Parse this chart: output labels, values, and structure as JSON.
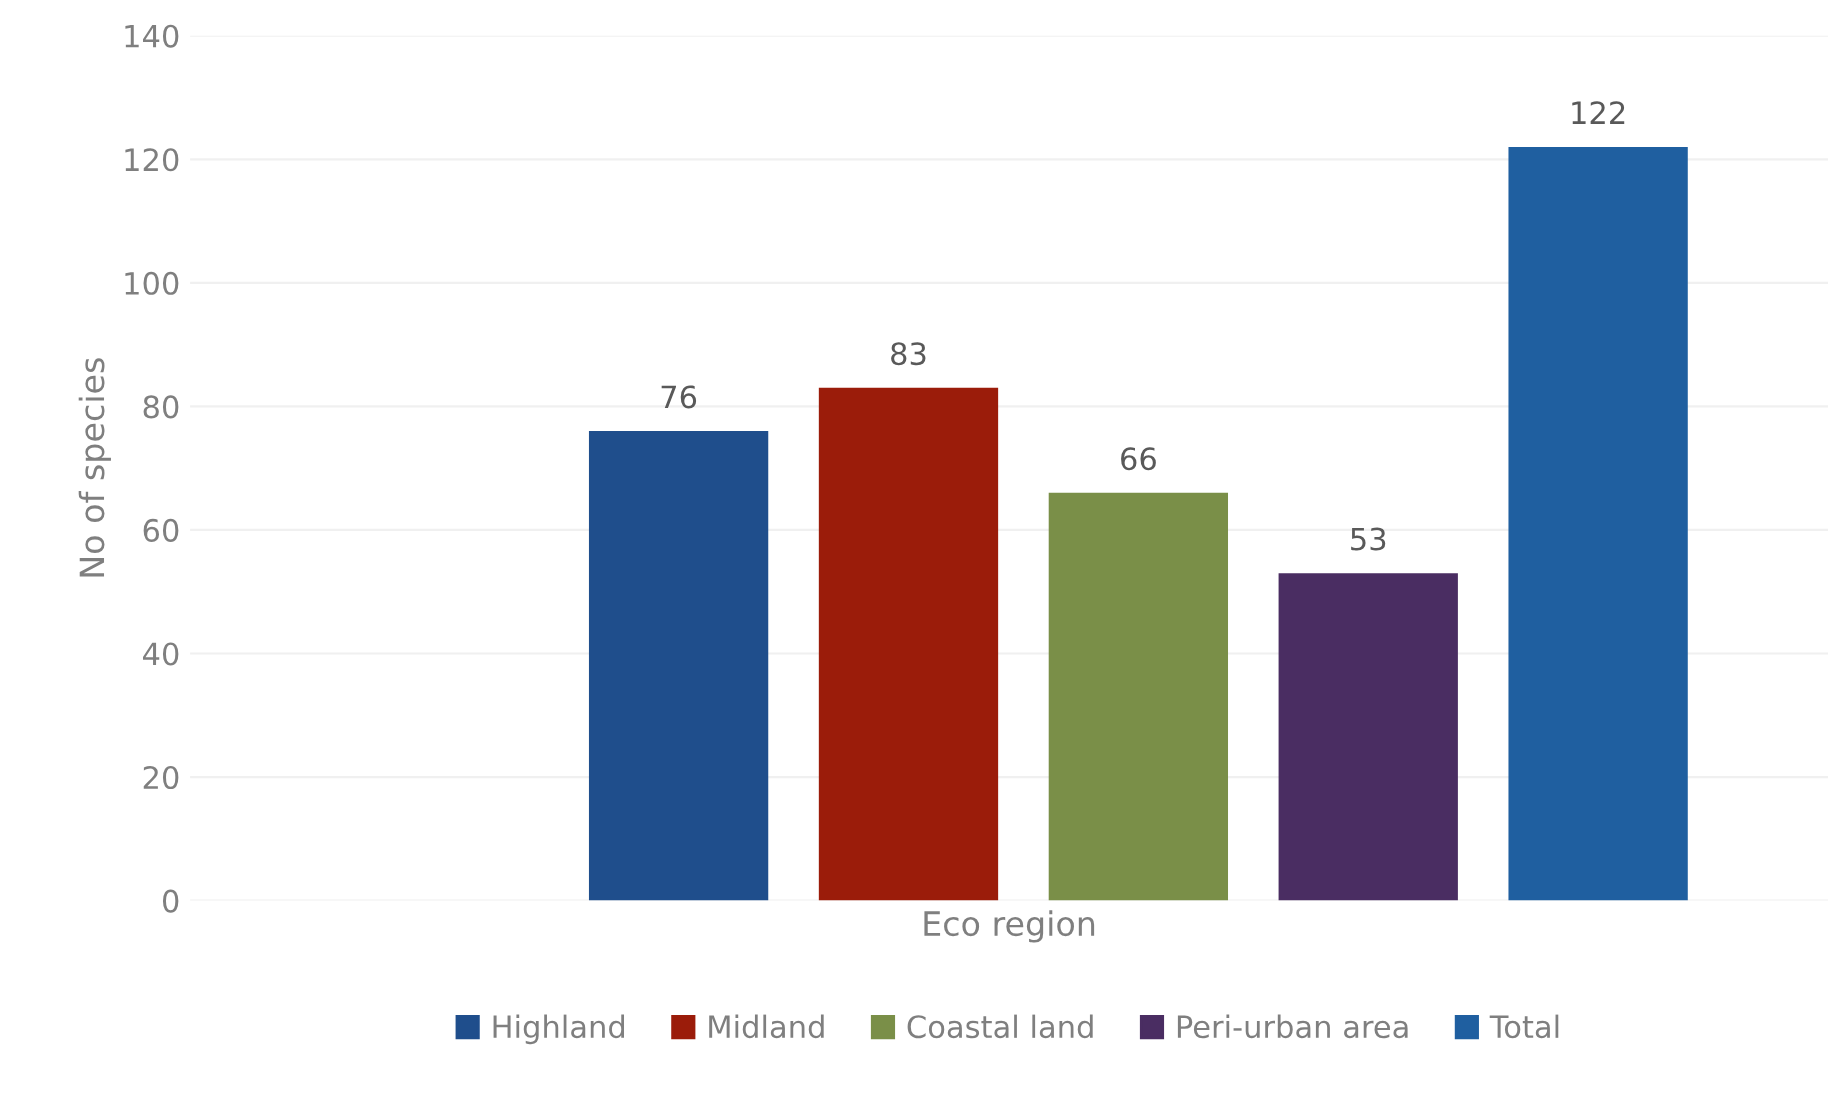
{
  "chart_data": {
    "type": "bar",
    "ylabel": "No of species",
    "xlabel": "Eco region",
    "categories": [
      null
    ],
    "series": [
      {
        "name": "Highland",
        "color": "#1f4e8c",
        "values": [
          76
        ]
      },
      {
        "name": "Midland",
        "color": "#9b1c0a",
        "values": [
          83
        ]
      },
      {
        "name": "Coastal land",
        "color": "#7a8f48",
        "values": [
          66
        ]
      },
      {
        "name": "Peri-urban area",
        "color": "#4a2d62",
        "values": [
          53
        ]
      },
      {
        "name": "Total",
        "color": "#1f5fa0",
        "values": [
          122
        ]
      }
    ],
    "ylim": [
      0,
      140
    ],
    "yticks": [
      0,
      20,
      40,
      60,
      80,
      100,
      120,
      140
    ],
    "grid": "y",
    "legend": "bottom",
    "data_labels": true
  }
}
